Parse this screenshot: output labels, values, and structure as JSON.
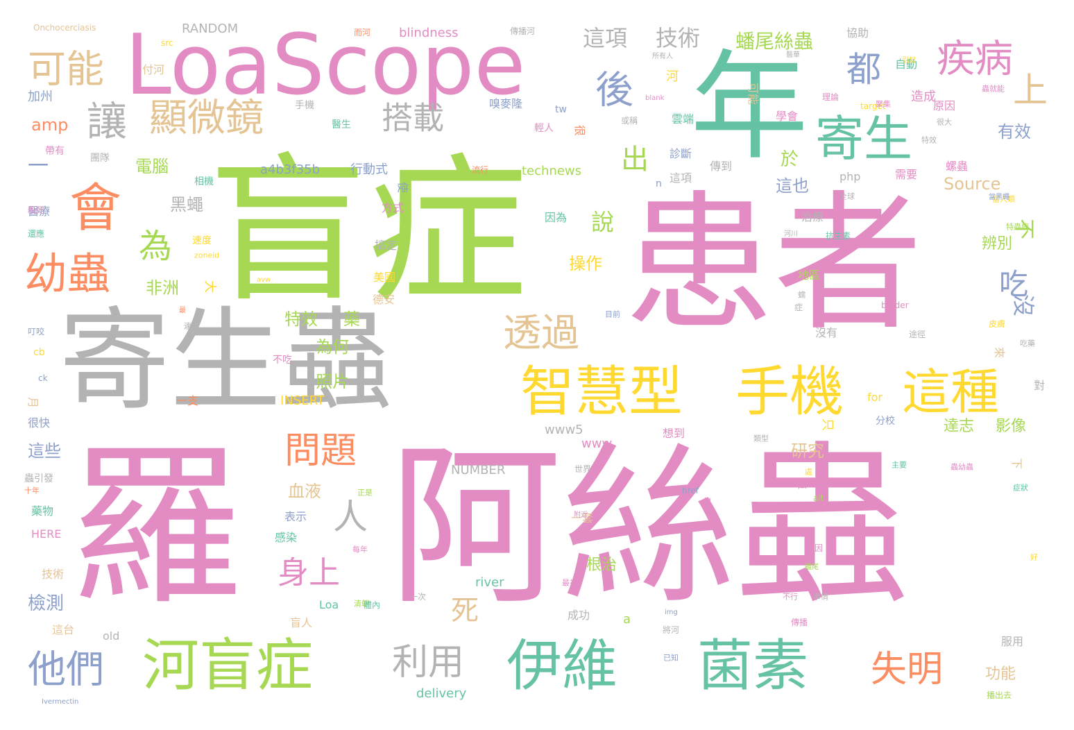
{
  "palette": {
    "pink": "#e38cc4",
    "green": "#a6d854",
    "teal": "#66c2a5",
    "gray": "#b3b3b3",
    "orange": "#fc8d62",
    "blue": "#8da0cb",
    "tan": "#e5c494",
    "yellow": "#ffd92f"
  },
  "words": [
    {
      "t": "羅",
      "c": "pink"
    },
    {
      "t": "阿絲蟲",
      "c": "pink"
    },
    {
      "t": "盲症",
      "c": "green"
    },
    {
      "t": "患者",
      "c": "pink"
    },
    {
      "t": "寄生蟲",
      "c": "gray"
    },
    {
      "t": "年",
      "c": "teal"
    },
    {
      "t": "LoaScope",
      "c": "pink"
    },
    {
      "t": "河盲症",
      "c": "green"
    },
    {
      "t": "伊維",
      "c": "teal"
    },
    {
      "t": "菌素",
      "c": "teal"
    },
    {
      "t": "智慧型",
      "c": "yellow"
    },
    {
      "t": "手機",
      "c": "yellow"
    },
    {
      "t": "這種",
      "c": "yellow"
    },
    {
      "t": "寄生",
      "c": "teal"
    },
    {
      "t": "會",
      "c": "orange"
    },
    {
      "t": "幼蟲",
      "c": "orange"
    },
    {
      "t": "讓",
      "c": "gray"
    },
    {
      "t": "顯微鏡",
      "c": "tan"
    },
    {
      "t": "可能",
      "c": "tan"
    },
    {
      "t": "他們",
      "c": "blue"
    },
    {
      "t": "利用",
      "c": "gray"
    },
    {
      "t": "失明",
      "c": "orange"
    },
    {
      "t": "透過",
      "c": "tan"
    },
    {
      "t": "疾病",
      "c": "pink"
    },
    {
      "t": "上",
      "c": "tan"
    },
    {
      "t": "後",
      "c": "blue"
    },
    {
      "t": "都",
      "c": "blue"
    },
    {
      "t": "為",
      "c": "green"
    },
    {
      "t": "人",
      "c": "gray"
    },
    {
      "t": "問題",
      "c": "orange"
    },
    {
      "t": "身上",
      "c": "pink"
    },
    {
      "t": "搭載",
      "c": "gray"
    },
    {
      "t": "出",
      "c": "green"
    },
    {
      "t": "吃",
      "c": "blue"
    },
    {
      "t": "死",
      "c": "tan"
    },
    {
      "t": "這項",
      "c": "gray"
    },
    {
      "t": "技術",
      "c": "gray"
    },
    {
      "t": "蟠尾絲蟲",
      "c": "green"
    },
    {
      "t": "說",
      "c": "green"
    },
    {
      "t": "電腦",
      "c": "green"
    },
    {
      "t": "黑蠅",
      "c": "gray"
    },
    {
      "t": "非洲",
      "c": "green"
    },
    {
      "t": "特效",
      "c": "green"
    },
    {
      "t": "藥",
      "c": "green"
    },
    {
      "t": "為何",
      "c": "green"
    },
    {
      "t": "照片",
      "c": "green"
    },
    {
      "t": "血液",
      "c": "tan"
    },
    {
      "t": "研究",
      "c": "tan"
    },
    {
      "t": "這些",
      "c": "blue"
    },
    {
      "t": "有效",
      "c": "blue"
    },
    {
      "t": "沒",
      "c": "blue"
    },
    {
      "t": "Source",
      "c": "tan"
    },
    {
      "t": "於",
      "c": "green"
    },
    {
      "t": "這也",
      "c": "blue"
    },
    {
      "t": "不",
      "c": "green"
    },
    {
      "t": "辨別",
      "c": "green"
    },
    {
      "t": "操作",
      "c": "yellow"
    },
    {
      "t": "檢測",
      "c": "blue"
    },
    {
      "t": "amp",
      "c": "orange"
    },
    {
      "t": "一",
      "c": "blue"
    },
    {
      "t": "達志",
      "c": "green"
    },
    {
      "t": "影像",
      "c": "green"
    },
    {
      "t": "功能",
      "c": "tan"
    },
    {
      "t": "根治",
      "c": "green"
    },
    {
      "t": "a4b3f35b",
      "c": "blue"
    },
    {
      "t": "行動式",
      "c": "blue"
    },
    {
      "t": "technews",
      "c": "green"
    },
    {
      "t": "RANDOM",
      "c": "gray"
    },
    {
      "t": "blindness",
      "c": "pink"
    },
    {
      "t": "Onchocerciasis",
      "c": "tan"
    },
    {
      "t": "NUMBER",
      "c": "gray"
    },
    {
      "t": "INSERT",
      "c": "yellow"
    },
    {
      "t": "www5",
      "c": "gray"
    },
    {
      "t": "www",
      "c": "pink"
    },
    {
      "t": "delivery",
      "c": "teal"
    },
    {
      "t": "river",
      "c": "teal"
    },
    {
      "t": "old",
      "c": "gray"
    },
    {
      "t": "HERE",
      "c": "pink"
    },
    {
      "t": "Loa",
      "c": "teal"
    },
    {
      "t": "for",
      "c": "yellow"
    },
    {
      "t": "php",
      "c": "gray"
    },
    {
      "t": "cb",
      "c": "yellow"
    },
    {
      "t": "ck",
      "c": "blue"
    },
    {
      "t": "tw",
      "c": "blue"
    },
    {
      "t": "n",
      "c": "blue"
    },
    {
      "t": "a",
      "c": "green"
    },
    {
      "t": "href",
      "c": "blue"
    },
    {
      "t": "alt",
      "c": "green"
    },
    {
      "t": "img",
      "c": "blue"
    },
    {
      "t": "zoneid",
      "c": "yellow"
    },
    {
      "t": "avw",
      "c": "yellow"
    },
    {
      "t": "src",
      "c": "yellow"
    },
    {
      "t": "blank",
      "c": "pink"
    },
    {
      "t": "target",
      "c": "yellow"
    },
    {
      "t": "border",
      "c": "pink"
    },
    {
      "t": "Ivermectin",
      "c": "blue"
    },
    {
      "t": "可能",
      "c": "tan"
    },
    {
      "t": "而河",
      "c": "orange"
    },
    {
      "t": "傳播河",
      "c": "gray"
    },
    {
      "t": "協助",
      "c": "gray"
    },
    {
      "t": "所有人",
      "c": "gray"
    },
    {
      "t": "付河",
      "c": "tan"
    },
    {
      "t": "加州",
      "c": "blue"
    },
    {
      "t": "手機",
      "c": "gray"
    },
    {
      "t": "嗅麥隆",
      "c": "blue"
    },
    {
      "t": "輕人",
      "c": "pink"
    },
    {
      "t": "很",
      "c": "orange"
    },
    {
      "t": "醫生",
      "c": "teal"
    },
    {
      "t": "團隊",
      "c": "gray"
    },
    {
      "t": "帶有",
      "c": "pink"
    },
    {
      "t": "相機",
      "c": "teal"
    },
    {
      "t": "醫療",
      "c": "blue"
    },
    {
      "t": "速度",
      "c": "yellow"
    },
    {
      "t": "使",
      "c": "blue"
    },
    {
      "t": "方式",
      "c": "pink"
    },
    {
      "t": "因為",
      "c": "teal"
    },
    {
      "t": "搞定",
      "c": "gray"
    },
    {
      "t": "美國",
      "c": "yellow"
    },
    {
      "t": "德安",
      "c": "tan"
    },
    {
      "t": "大",
      "c": "yellow"
    },
    {
      "t": "不吃",
      "c": "pink"
    },
    {
      "t": "一支",
      "c": "orange"
    },
    {
      "t": "一種",
      "c": "gray"
    },
    {
      "t": "月",
      "c": "tan"
    },
    {
      "t": "很快",
      "c": "blue"
    },
    {
      "t": "蟲引發",
      "c": "gray"
    },
    {
      "t": "十年",
      "c": "orange"
    },
    {
      "t": "藥物",
      "c": "teal"
    },
    {
      "t": "表示",
      "c": "blue"
    },
    {
      "t": "感染",
      "c": "teal"
    },
    {
      "t": "每年",
      "c": "pink"
    },
    {
      "t": "技術",
      "c": "tan"
    },
    {
      "t": "這台",
      "c": "tan"
    },
    {
      "t": "盲人",
      "c": "tan"
    },
    {
      "t": "成功",
      "c": "gray"
    },
    {
      "t": "一套",
      "c": "tan"
    },
    {
      "t": "世界",
      "c": "gray"
    },
    {
      "t": "附近",
      "c": "pink"
    },
    {
      "t": "最初",
      "c": "pink"
    },
    {
      "t": "一次",
      "c": "gray"
    },
    {
      "t": "清朝",
      "c": "green"
    },
    {
      "t": "想到",
      "c": "pink"
    },
    {
      "t": "類型",
      "c": "gray"
    },
    {
      "t": "成因",
      "c": "pink"
    },
    {
      "t": "蟠尾",
      "c": "green"
    },
    {
      "t": "傳播",
      "c": "pink"
    },
    {
      "t": "事情",
      "c": "gray"
    },
    {
      "t": "不行",
      "c": "pink"
    },
    {
      "t": "已知",
      "c": "blue"
    },
    {
      "t": "將河",
      "c": "gray"
    },
    {
      "t": "服用",
      "c": "gray"
    },
    {
      "t": "播出去",
      "c": "green"
    },
    {
      "t": "來",
      "c": "tan"
    },
    {
      "t": "下",
      "c": "tan"
    },
    {
      "t": "掉",
      "c": "pink"
    },
    {
      "t": "只",
      "c": "yellow"
    },
    {
      "t": "分校",
      "c": "blue"
    },
    {
      "t": "沒有",
      "c": "gray"
    },
    {
      "t": "地區",
      "c": "green"
    },
    {
      "t": "治療",
      "c": "gray"
    },
    {
      "t": "抗生素",
      "c": "teal"
    },
    {
      "t": "河川",
      "c": "gray"
    },
    {
      "t": "需要",
      "c": "pink"
    },
    {
      "t": "螺蟲",
      "c": "pink"
    },
    {
      "t": "原因",
      "c": "pink"
    },
    {
      "t": "造成",
      "c": "pink"
    },
    {
      "t": "學會",
      "c": "pink"
    },
    {
      "t": "雲端",
      "c": "teal"
    },
    {
      "t": "診斷",
      "c": "blue"
    },
    {
      "t": "傳到",
      "c": "gray"
    },
    {
      "t": "這項",
      "c": "gray"
    },
    {
      "t": "全球",
      "c": "gray"
    },
    {
      "t": "自動",
      "c": "teal"
    },
    {
      "t": "醫華",
      "c": "gray"
    },
    {
      "t": "皮膚",
      "c": "yellow"
    },
    {
      "t": "吃藥",
      "c": "gray"
    },
    {
      "t": "對",
      "c": "gray"
    },
    {
      "t": "主要",
      "c": "teal"
    },
    {
      "t": "蟲幼蟲",
      "c": "pink"
    },
    {
      "t": "症狀",
      "c": "teal"
    },
    {
      "t": "好",
      "c": "yellow"
    },
    {
      "t": "特效",
      "c": "gray"
    },
    {
      "t": "很大",
      "c": "gray"
    },
    {
      "t": "當人類",
      "c": "yellow"
    },
    {
      "t": "特蟲病",
      "c": "green"
    },
    {
      "t": "當黑蠅",
      "c": "blue"
    },
    {
      "t": "蟲就能",
      "c": "pink"
    },
    {
      "t": "引起",
      "c": "yellow"
    },
    {
      "t": "聚集",
      "c": "pink"
    },
    {
      "t": "理論",
      "c": "pink"
    },
    {
      "t": "或稱",
      "c": "gray"
    },
    {
      "t": "河",
      "c": "yellow"
    },
    {
      "t": "流行",
      "c": "orange"
    },
    {
      "t": "目前",
      "c": "blue"
    },
    {
      "t": "連續",
      "c": "gray"
    },
    {
      "t": "最",
      "c": "orange"
    },
    {
      "t": "叮咬",
      "c": "blue"
    },
    {
      "t": "殺死",
      "c": "pink"
    },
    {
      "t": "還應",
      "c": "teal"
    },
    {
      "t": "正是",
      "c": "green"
    },
    {
      "t": "稱",
      "c": "pink"
    },
    {
      "t": "體內",
      "c": "teal"
    },
    {
      "t": "處",
      "c": "yellow"
    },
    {
      "t": "傳",
      "c": "pink"
    },
    {
      "t": "症",
      "c": "gray"
    },
    {
      "t": "蠕",
      "c": "gray"
    },
    {
      "t": "途徑",
      "c": "gray"
    }
  ]
}
